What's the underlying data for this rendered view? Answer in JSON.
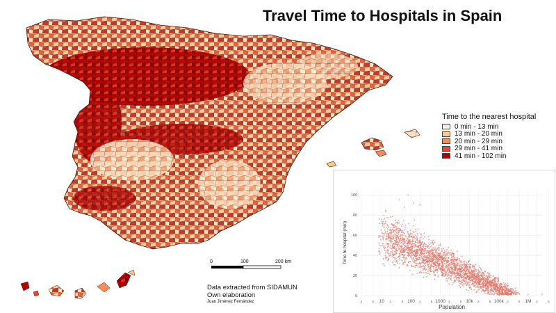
{
  "title": "Travel Time to Hospitals in Spain",
  "legend": {
    "title": "Time to the nearest hospital",
    "items": [
      {
        "label": "0 min - 13 min",
        "color": "#fef0d9"
      },
      {
        "label": "13 min - 20 min",
        "color": "#fdcc8a"
      },
      {
        "label": "20 min - 29 min",
        "color": "#fc8d59"
      },
      {
        "label": "29 min - 41 min",
        "color": "#e34a33"
      },
      {
        "label": "41  min - 102 min",
        "color": "#b30000"
      }
    ]
  },
  "scalebar": {
    "labels": [
      "0",
      "100",
      "200 km"
    ]
  },
  "credits": {
    "line1": "Data extracted from SIDAMUN",
    "line2": "Own elaboration",
    "author": "Juan Jiménez Fernández"
  },
  "chart_data": {
    "type": "scatter",
    "xlabel": "Population",
    "ylabel": "Time to hospital (min)",
    "x_scale": "log",
    "xlim": [
      2,
      3000000
    ],
    "ylim": [
      0,
      105
    ],
    "y_ticks": [
      "0",
      "20",
      "40",
      "60",
      "80",
      "100"
    ],
    "x_tick_labels": [
      "2",
      "5",
      "10",
      "2",
      "5",
      "100",
      "2",
      "5",
      "1000",
      "2",
      "5",
      "10k",
      "2",
      "5",
      "100k",
      "2",
      "5",
      "1M",
      "2",
      "5"
    ],
    "x_tick_values": [
      2,
      5,
      10,
      20,
      50,
      100,
      200,
      500,
      1000,
      2000,
      5000,
      10000,
      20000,
      50000,
      100000,
      200000,
      500000,
      1000000,
      2000000,
      5000000
    ],
    "point_color": "#e07a6e",
    "grid": true,
    "approx_points": [
      [
        20,
        78
      ],
      [
        30,
        72
      ],
      [
        15,
        52
      ],
      [
        40,
        95
      ],
      [
        60,
        88
      ],
      [
        80,
        100
      ],
      [
        120,
        92
      ],
      [
        200,
        90
      ],
      [
        35,
        60
      ],
      [
        45,
        45
      ],
      [
        55,
        38
      ],
      [
        70,
        30
      ],
      [
        90,
        25
      ],
      [
        110,
        42
      ],
      [
        150,
        55
      ],
      [
        180,
        48
      ],
      [
        250,
        35
      ],
      [
        300,
        28
      ],
      [
        400,
        22
      ],
      [
        500,
        30
      ],
      [
        600,
        40
      ],
      [
        800,
        32
      ],
      [
        1000,
        26
      ],
      [
        1500,
        20
      ],
      [
        2000,
        18
      ],
      [
        3000,
        15
      ],
      [
        4000,
        22
      ],
      [
        5000,
        12
      ],
      [
        8000,
        10
      ],
      [
        10000,
        8
      ],
      [
        15000,
        14
      ],
      [
        20000,
        6
      ],
      [
        30000,
        5
      ],
      [
        50000,
        4
      ],
      [
        80000,
        6
      ],
      [
        100000,
        3
      ],
      [
        200000,
        2
      ],
      [
        500000,
        2
      ],
      [
        1000000,
        1
      ],
      [
        3000000,
        1
      ],
      [
        25,
        40
      ],
      [
        18,
        65
      ],
      [
        12,
        30
      ],
      [
        65,
        70
      ],
      [
        95,
        62
      ],
      [
        130,
        75
      ],
      [
        170,
        66
      ],
      [
        220,
        58
      ],
      [
        280,
        62
      ],
      [
        350,
        50
      ],
      [
        450,
        45
      ],
      [
        700,
        44
      ],
      [
        900,
        50
      ],
      [
        1200,
        38
      ],
      [
        1800,
        35
      ],
      [
        2500,
        28
      ],
      [
        3500,
        30
      ],
      [
        6000,
        25
      ],
      [
        7000,
        18
      ],
      [
        12000,
        20
      ],
      [
        25000,
        15
      ],
      [
        40000,
        12
      ],
      [
        60000,
        10
      ],
      [
        150000,
        8
      ]
    ]
  }
}
